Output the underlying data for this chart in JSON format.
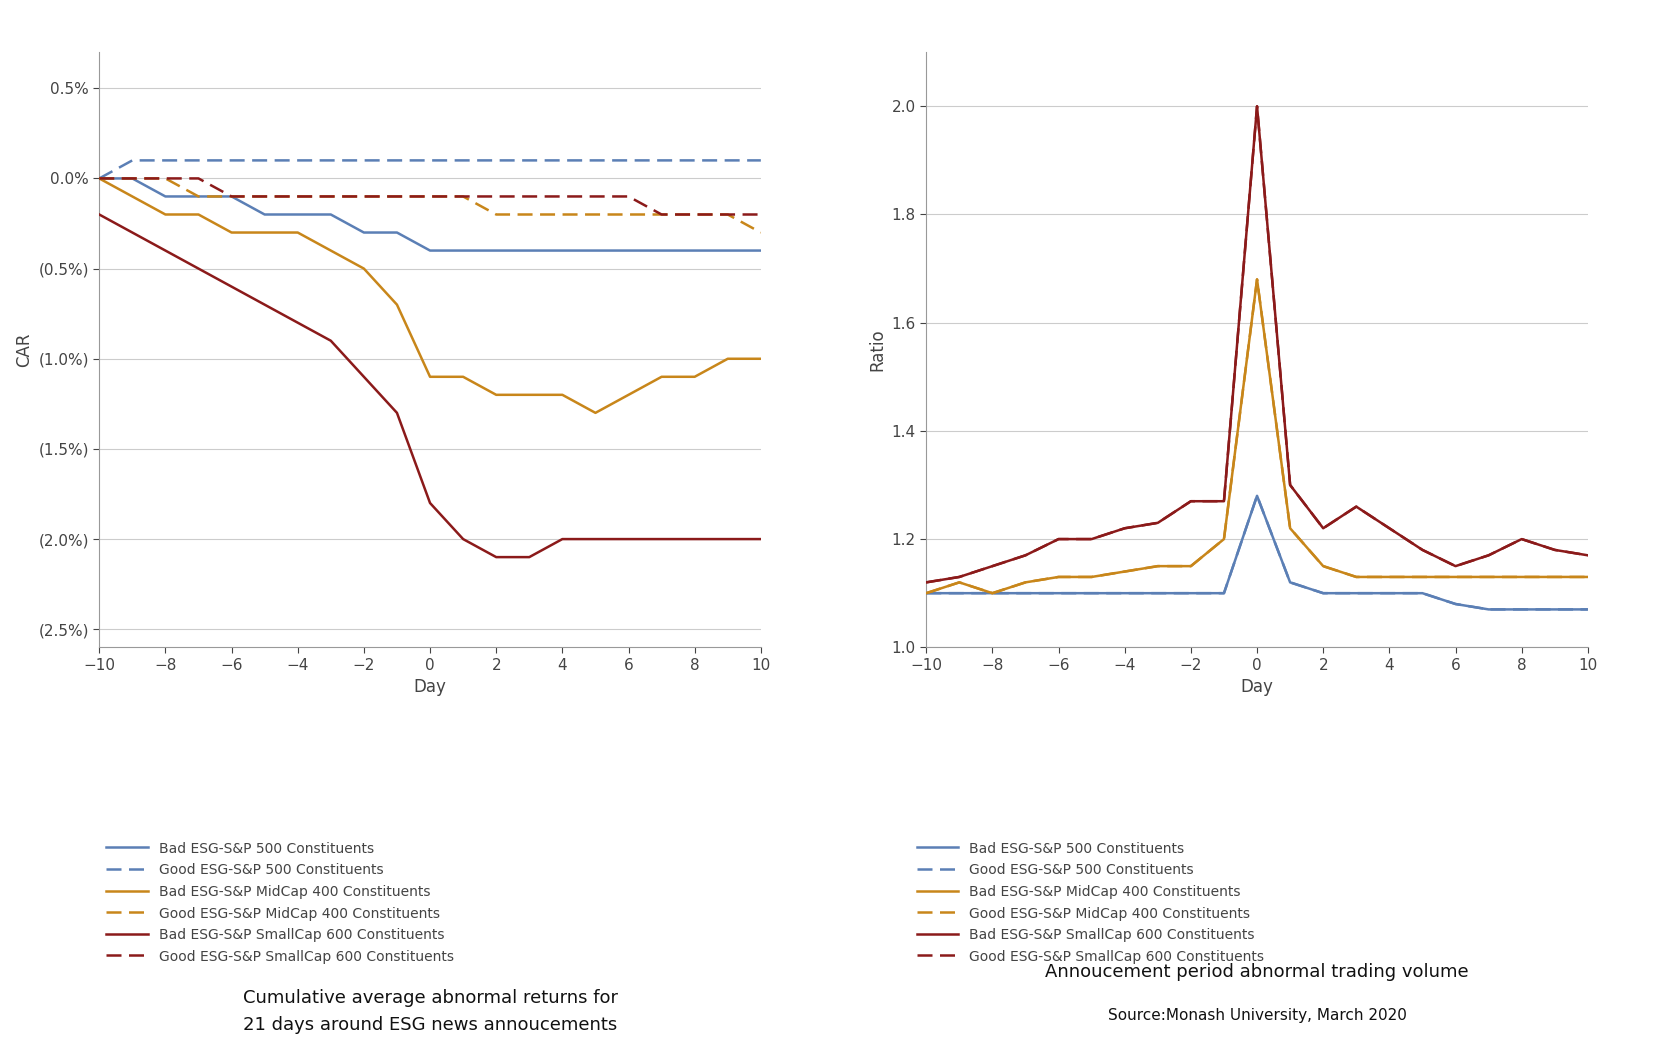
{
  "days": [
    -10,
    -9,
    -8,
    -7,
    -6,
    -5,
    -4,
    -3,
    -2,
    -1,
    0,
    1,
    2,
    3,
    4,
    5,
    6,
    7,
    8,
    9,
    10
  ],
  "car_bad_sp500": [
    0.0,
    0.0,
    -0.001,
    -0.001,
    -0.001,
    -0.002,
    -0.002,
    -0.002,
    -0.003,
    -0.003,
    -0.004,
    -0.004,
    -0.004,
    -0.004,
    -0.004,
    -0.004,
    -0.004,
    -0.004,
    -0.004,
    -0.004,
    -0.004
  ],
  "car_good_sp500": [
    0.0,
    0.001,
    0.001,
    0.001,
    0.001,
    0.001,
    0.001,
    0.001,
    0.001,
    0.001,
    0.001,
    0.001,
    0.001,
    0.001,
    0.001,
    0.001,
    0.001,
    0.001,
    0.001,
    0.001,
    0.001
  ],
  "car_bad_mid400": [
    0.0,
    -0.001,
    -0.002,
    -0.002,
    -0.003,
    -0.003,
    -0.003,
    -0.004,
    -0.005,
    -0.007,
    -0.011,
    -0.011,
    -0.012,
    -0.012,
    -0.012,
    -0.013,
    -0.012,
    -0.011,
    -0.011,
    -0.01,
    -0.01
  ],
  "car_good_mid400": [
    0.0,
    0.0,
    0.0,
    -0.001,
    -0.001,
    -0.001,
    -0.001,
    -0.001,
    -0.001,
    -0.001,
    -0.001,
    -0.001,
    -0.002,
    -0.002,
    -0.002,
    -0.002,
    -0.002,
    -0.002,
    -0.002,
    -0.002,
    -0.003
  ],
  "car_bad_small600": [
    -0.002,
    -0.003,
    -0.004,
    -0.005,
    -0.006,
    -0.007,
    -0.008,
    -0.009,
    -0.011,
    -0.013,
    -0.018,
    -0.02,
    -0.021,
    -0.021,
    -0.02,
    -0.02,
    -0.02,
    -0.02,
    -0.02,
    -0.02,
    -0.02
  ],
  "car_good_small600": [
    0.0,
    0.0,
    0.0,
    0.0,
    -0.001,
    -0.001,
    -0.001,
    -0.001,
    -0.001,
    -0.001,
    -0.001,
    -0.001,
    -0.001,
    -0.001,
    -0.001,
    -0.001,
    -0.001,
    -0.002,
    -0.002,
    -0.002,
    -0.002
  ],
  "vol_bad_sp500": [
    1.1,
    1.1,
    1.1,
    1.1,
    1.1,
    1.1,
    1.1,
    1.1,
    1.1,
    1.1,
    1.28,
    1.12,
    1.1,
    1.1,
    1.1,
    1.1,
    1.08,
    1.07,
    1.07,
    1.07,
    1.07
  ],
  "vol_good_sp500": [
    1.1,
    1.1,
    1.1,
    1.1,
    1.1,
    1.1,
    1.1,
    1.1,
    1.1,
    1.1,
    1.28,
    1.12,
    1.1,
    1.1,
    1.1,
    1.1,
    1.08,
    1.07,
    1.07,
    1.07,
    1.07
  ],
  "vol_bad_mid400": [
    1.1,
    1.12,
    1.1,
    1.12,
    1.13,
    1.13,
    1.14,
    1.15,
    1.15,
    1.2,
    1.68,
    1.22,
    1.15,
    1.13,
    1.13,
    1.13,
    1.13,
    1.13,
    1.13,
    1.13,
    1.13
  ],
  "vol_good_mid400": [
    1.1,
    1.12,
    1.1,
    1.12,
    1.13,
    1.13,
    1.14,
    1.15,
    1.15,
    1.2,
    1.68,
    1.22,
    1.15,
    1.13,
    1.13,
    1.13,
    1.13,
    1.13,
    1.13,
    1.13,
    1.13
  ],
  "vol_bad_small600": [
    1.12,
    1.13,
    1.15,
    1.17,
    1.2,
    1.2,
    1.22,
    1.23,
    1.27,
    1.27,
    2.0,
    1.3,
    1.22,
    1.26,
    1.22,
    1.18,
    1.15,
    1.17,
    1.2,
    1.18,
    1.17
  ],
  "vol_good_small600": [
    1.12,
    1.13,
    1.15,
    1.17,
    1.2,
    1.2,
    1.22,
    1.23,
    1.27,
    1.27,
    2.0,
    1.3,
    1.22,
    1.26,
    1.22,
    1.18,
    1.15,
    1.17,
    1.2,
    1.18,
    1.17
  ],
  "color_sp500": "#5B7FB5",
  "color_mid400": "#C8861A",
  "color_small600": "#8B1A1A",
  "legend_labels": [
    "Bad ESG-S&P 500 Constituents",
    "Good ESG-S&P 500 Constituents",
    "Bad ESG-S&P MidCap 400 Constituents",
    "Good ESG-S&P MidCap 400 Constituents",
    "Bad ESG-S&P SmallCap 600 Constituents",
    "Good ESG-S&P SmallCap 600 Constituents"
  ],
  "title_left": "Cumulative average abnormal returns for\n21 days around ESG news annoucements",
  "title_right": "Annoucement period abnormal trading volume",
  "source": "Source:Monash University, March 2020",
  "ylabel_left": "CAR",
  "ylabel_right": "Ratio",
  "xlabel": "Day",
  "bg_color": "#ffffff",
  "spine_color": "#999999",
  "tick_color": "#444444",
  "grid_color": "#cccccc"
}
